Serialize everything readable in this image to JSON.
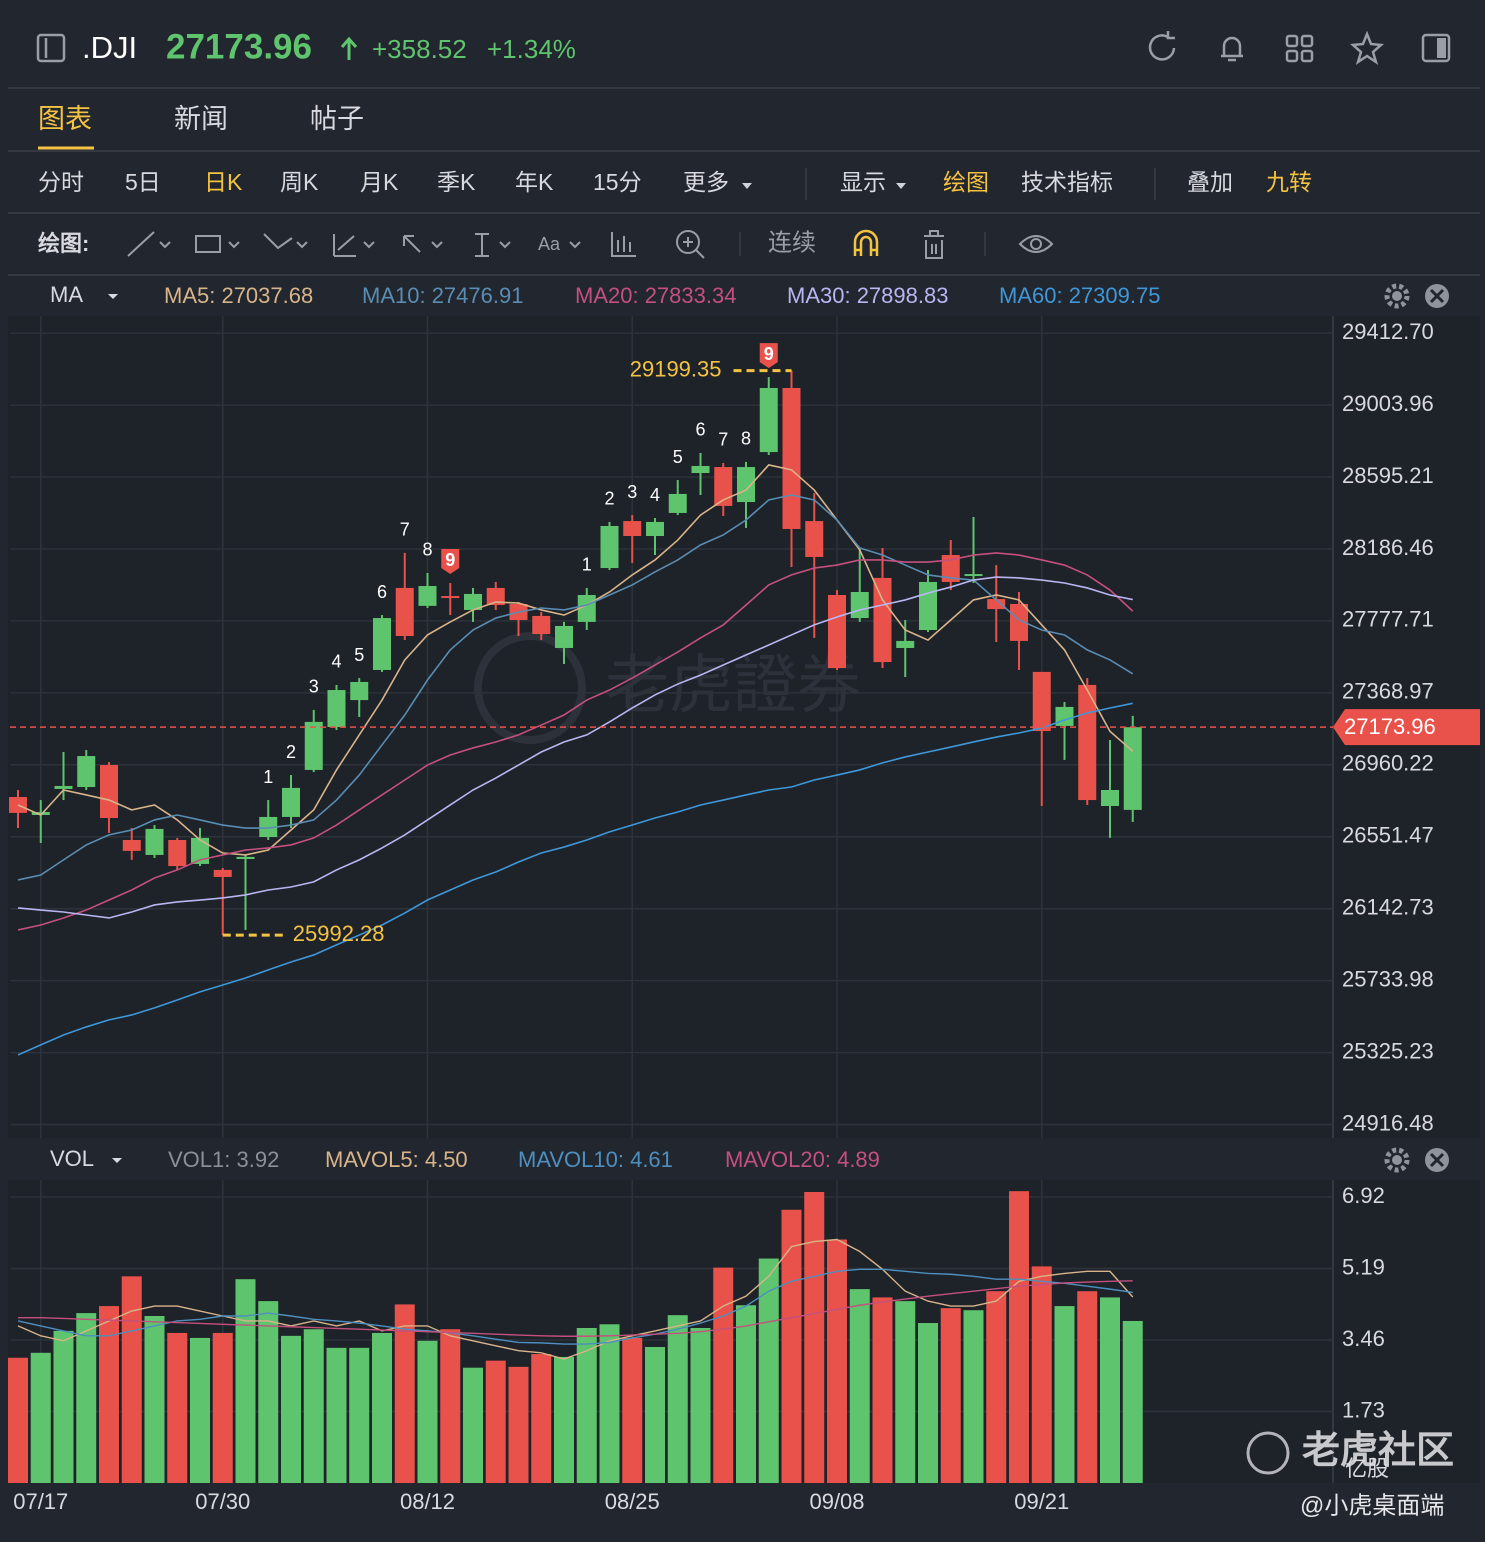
{
  "header": {
    "symbol": ".DJI",
    "price": "27173.96",
    "change": "+358.52",
    "percent": "+1.34%"
  },
  "tabs": [
    "图表",
    "新闻",
    "帖子"
  ],
  "periods": [
    "分时",
    "5日",
    "日K",
    "周K",
    "月K",
    "季K",
    "年K",
    "15分",
    "更多"
  ],
  "options": [
    "显示",
    "绘图",
    "技术指标",
    "叠加",
    "九转"
  ],
  "drawing_toolbar": {
    "label": "绘图:",
    "continuous": "连续"
  },
  "watermark": {
    "brand": "老虎證券",
    "community": "老虎社区",
    "handle": "@小虎桌面端"
  },
  "chart_data": [
    {
      "type": "candlestick",
      "indicator": "MA",
      "categories": [
        null,
        "07/17",
        null,
        null,
        null,
        null,
        null,
        null,
        null,
        "07/30",
        null,
        null,
        null,
        null,
        null,
        null,
        null,
        null,
        "08/12",
        null,
        null,
        null,
        null,
        null,
        null,
        null,
        null,
        "08/25",
        null,
        null,
        null,
        null,
        null,
        null,
        null,
        null,
        "09/08",
        null,
        null,
        null,
        null,
        null,
        null,
        null,
        null,
        "09/21",
        null,
        null,
        null,
        null
      ],
      "open": [
        26777,
        26675,
        26823,
        26834,
        26959,
        26533,
        26448,
        26533,
        26397,
        26363,
        26425,
        26550,
        26664,
        26931,
        27175,
        27328,
        27499,
        27965,
        27863,
        27919,
        27840,
        27965,
        27874,
        27806,
        27624,
        27772,
        28078,
        28345,
        28260,
        28391,
        28618,
        28652,
        28453,
        28737,
        29101,
        28345,
        27925,
        27794,
        28022,
        27624,
        27726,
        28152,
        28033,
        27902,
        27874,
        27488,
        27181,
        27414,
        26726,
        26704
      ],
      "close": [
        26687,
        26692,
        26840,
        27010,
        26658,
        26471,
        26596,
        26385,
        26545,
        26323,
        26437,
        26664,
        26829,
        27204,
        27385,
        27431,
        27794,
        27692,
        27976,
        27908,
        27931,
        27868,
        27783,
        27703,
        27749,
        27925,
        28317,
        28260,
        28340,
        28499,
        28658,
        28431,
        28652,
        29101,
        28300,
        28141,
        27510,
        27942,
        27544,
        27664,
        27999,
        27999,
        28044,
        27845,
        27664,
        27152,
        27289,
        26760,
        26817,
        27173.96
      ],
      "high": [
        26817,
        26760,
        27033,
        27044,
        26976,
        26601,
        26618,
        26545,
        26601,
        26374,
        26448,
        26760,
        26902,
        27272,
        27414,
        27453,
        27811,
        28164,
        28050,
        27993,
        27965,
        27999,
        27885,
        27828,
        27772,
        27965,
        28340,
        28379,
        28362,
        28578,
        28732,
        28675,
        28681,
        29163,
        29199.35,
        28504,
        27953,
        28192,
        28192,
        27783,
        28067,
        28237,
        28368,
        28095,
        27942,
        27488,
        27317,
        27453,
        27101,
        27238
      ],
      "low": [
        26601,
        26516,
        26760,
        26817,
        26573,
        26420,
        26431,
        26363,
        26385,
        25992.28,
        26022,
        26533,
        26601,
        26919,
        27158,
        27232,
        27488,
        27669,
        27851,
        27811,
        27772,
        27840,
        27692,
        27669,
        27533,
        27726,
        28067,
        28107,
        28152,
        28379,
        28493,
        28374,
        28306,
        28720,
        28084,
        27681,
        27499,
        27772,
        27510,
        27459,
        27715,
        27953,
        27993,
        27658,
        27499,
        26726,
        26988,
        26732,
        26545,
        26635
      ],
      "series": [
        {
          "name": "MA5: 27037.68",
          "color": "#d8b48a",
          "values": [
            26732,
            26675,
            26817,
            26789,
            26760,
            26704,
            26732,
            26647,
            26533,
            26459,
            26448,
            26476,
            26590,
            26704,
            26931,
            27130,
            27328,
            27556,
            27698,
            27772,
            27840,
            27885,
            27879,
            27840,
            27811,
            27868,
            27942,
            28039,
            28124,
            28237,
            28379,
            28465,
            28521,
            28664,
            28636,
            28521,
            28351,
            28181,
            27897,
            27726,
            27669,
            27783,
            27897,
            27925,
            27897,
            27755,
            27613,
            27385,
            27150,
            27037.68
          ]
        },
        {
          "name": "MA10: 27476.91",
          "color": "#5a8db3",
          "values": [
            26306,
            26334,
            26420,
            26505,
            26562,
            26590,
            26647,
            26675,
            26647,
            26618,
            26601,
            26601,
            26618,
            26647,
            26760,
            26902,
            27073,
            27243,
            27442,
            27613,
            27726,
            27794,
            27828,
            27851,
            27840,
            27868,
            27925,
            27982,
            28056,
            28124,
            28209,
            28266,
            28351,
            28465,
            28493,
            28465,
            28351,
            28192,
            28152,
            28095,
            28039,
            28022,
            28010,
            27897,
            27783,
            27726,
            27698,
            27613,
            27556,
            27476.91
          ]
        },
        {
          "name": "MA20: 27833.34",
          "color": "#c4507e",
          "values": [
            26022,
            26050,
            26090,
            26135,
            26192,
            26249,
            26317,
            26363,
            26420,
            26448,
            26476,
            26488,
            26505,
            26545,
            26618,
            26704,
            26789,
            26874,
            26959,
            27016,
            27056,
            27090,
            27130,
            27186,
            27243,
            27328,
            27385,
            27453,
            27527,
            27601,
            27681,
            27755,
            27868,
            27982,
            28039,
            28078,
            28095,
            28124,
            28124,
            28112,
            28112,
            28124,
            28152,
            28164,
            28152,
            28124,
            28095,
            28039,
            27953,
            27833.34
          ]
        },
        {
          "name": "MA30: 27898.83",
          "color": "#b9b5f2",
          "values": [
            26147,
            26135,
            26124,
            26107,
            26090,
            26124,
            26164,
            26181,
            26192,
            26204,
            26221,
            26249,
            26266,
            26295,
            26363,
            26420,
            26488,
            26562,
            26647,
            26732,
            26817,
            26885,
            26959,
            27033,
            27090,
            27130,
            27204,
            27283,
            27357,
            27419,
            27470,
            27527,
            27584,
            27641,
            27698,
            27755,
            27800,
            27840,
            27868,
            27897,
            27936,
            27970,
            28010,
            28027,
            28022,
            28010,
            27993,
            27965,
            27925,
            27898.83
          ]
        },
        {
          "name": "MA60: 27309.75",
          "color": "#3f97d8",
          "values": [
            25312,
            25369,
            25425,
            25471,
            25511,
            25539,
            25579,
            25624,
            25670,
            25709,
            25749,
            25795,
            25840,
            25880,
            25937,
            25993,
            26050,
            26118,
            26192,
            26249,
            26306,
            26351,
            26408,
            26459,
            26493,
            26533,
            26579,
            26618,
            26658,
            26692,
            26732,
            26760,
            26789,
            26817,
            26834,
            26874,
            26902,
            26931,
            26971,
            27005,
            27033,
            27061,
            27090,
            27118,
            27141,
            27169,
            27215,
            27255,
            27283,
            27309.75
          ]
        }
      ],
      "td_counts": [
        null,
        null,
        null,
        null,
        null,
        null,
        null,
        null,
        null,
        null,
        null,
        1,
        2,
        3,
        4,
        5,
        6,
        7,
        8,
        9,
        null,
        null,
        null,
        null,
        null,
        1,
        2,
        3,
        4,
        5,
        6,
        7,
        8,
        9,
        null,
        null,
        null,
        null,
        null,
        null,
        null,
        null,
        null,
        null,
        null,
        null,
        null,
        null,
        null,
        null
      ],
      "current_price": 27173.96,
      "ylim": [
        24840,
        29510
      ],
      "yticks": [
        {
          "value": 29412.7,
          "label": "29412.70"
        },
        29003.96,
        28595.21,
        28186.46,
        27777.71,
        27368.97,
        26960.22,
        26551.47,
        26142.73,
        25733.98,
        25325.23,
        24916.48
      ],
      "up_color": "#5ec46d",
      "down_color": "#e9524a",
      "grid": true
    },
    {
      "type": "bar",
      "indicator": "VOL",
      "label": "VOL1: 3.92",
      "unit": "亿股",
      "values": [
        3.03,
        3.15,
        3.68,
        4.11,
        4.28,
        5.0,
        4.04,
        3.63,
        3.51,
        3.63,
        4.93,
        4.4,
        3.56,
        3.72,
        3.27,
        3.27,
        3.63,
        4.32,
        3.44,
        3.72,
        2.79,
        2.96,
        2.81,
        3.12,
        3.05,
        3.75,
        3.84,
        3.51,
        3.29,
        4.06,
        3.75,
        5.21,
        4.3,
        5.43,
        6.61,
        7.04,
        5.89,
        4.69,
        4.49,
        4.4,
        3.87,
        4.23,
        4.18,
        4.64,
        7.06,
        5.24,
        4.28,
        4.64,
        4.49,
        3.92
      ],
      "series": [
        {
          "name": "MAVOL5: 4.50",
          "color": "#d8b48a",
          "values": [
            3.8,
            3.56,
            3.44,
            3.68,
            3.92,
            4.16,
            4.28,
            4.28,
            4.16,
            4.04,
            3.92,
            3.92,
            3.8,
            3.92,
            3.8,
            3.92,
            3.68,
            3.8,
            3.8,
            3.56,
            3.44,
            3.32,
            3.2,
            3.15,
            3.0,
            3.2,
            3.44,
            3.56,
            3.68,
            3.8,
            3.92,
            4.28,
            4.52,
            5.0,
            5.72,
            5.84,
            5.89,
            5.6,
            5.17,
            4.64,
            4.4,
            4.28,
            4.28,
            4.4,
            4.88,
            5.0,
            5.07,
            5.12,
            5.12,
            4.5
          ]
        },
        {
          "name": "MAVOL10: 4.61",
          "color": "#4d8fbf",
          "values": [
            3.92,
            3.8,
            3.68,
            3.56,
            3.56,
            3.68,
            3.8,
            3.92,
            3.96,
            4.04,
            4.04,
            4.11,
            4.04,
            3.96,
            3.92,
            3.87,
            3.8,
            3.72,
            3.68,
            3.63,
            3.56,
            3.48,
            3.4,
            3.39,
            3.36,
            3.36,
            3.4,
            3.51,
            3.6,
            3.72,
            3.87,
            4.04,
            4.28,
            4.64,
            4.88,
            5.0,
            5.12,
            5.17,
            5.17,
            5.12,
            5.07,
            5.05,
            5.0,
            4.93,
            4.93,
            4.88,
            4.83,
            4.76,
            4.69,
            4.61
          ]
        },
        {
          "name": "MAVOL20: 4.89",
          "color": "#c4507e",
          "values": [
            4.0,
            4.0,
            3.98,
            3.96,
            3.94,
            3.92,
            3.9,
            3.88,
            3.86,
            3.84,
            3.82,
            3.8,
            3.78,
            3.76,
            3.74,
            3.72,
            3.7,
            3.68,
            3.66,
            3.64,
            3.62,
            3.6,
            3.58,
            3.56,
            3.55,
            3.55,
            3.56,
            3.58,
            3.6,
            3.62,
            3.66,
            3.72,
            3.8,
            3.9,
            4.0,
            4.1,
            4.2,
            4.3,
            4.38,
            4.45,
            4.52,
            4.58,
            4.64,
            4.7,
            4.76,
            4.8,
            4.84,
            4.86,
            4.88,
            4.89
          ]
        }
      ],
      "ylim": [
        0,
        7.33
      ],
      "yticks": [
        1.73,
        3.46,
        5.19,
        6.92
      ],
      "grid": true
    }
  ]
}
